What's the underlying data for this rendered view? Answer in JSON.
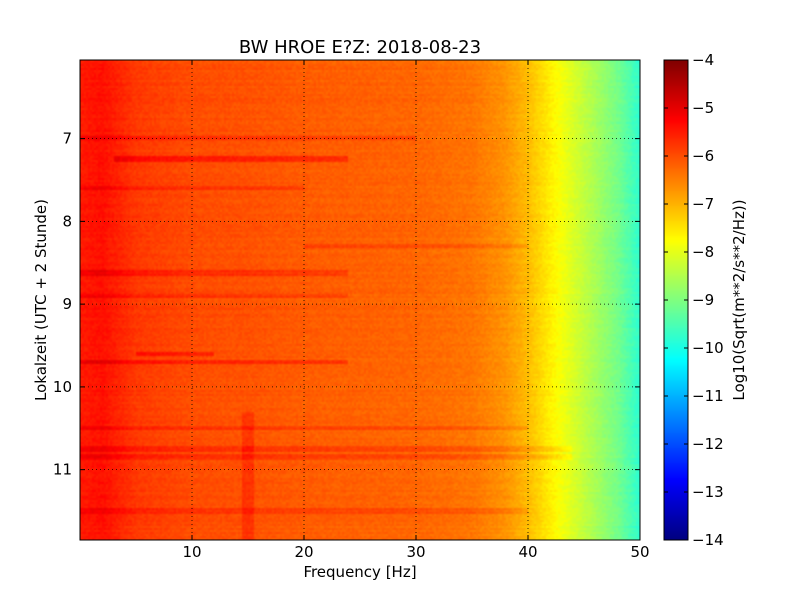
{
  "chart_data": {
    "type": "heatmap",
    "title": "BW HROE E?Z: 2018-08-23",
    "xlabel": "Frequency [Hz]",
    "ylabel": "Lokalzeit (UTC + 2 Stunde)",
    "xlim": [
      0,
      50
    ],
    "ylim": [
      6.05,
      11.85
    ],
    "y_inverted": true,
    "x_ticks": [
      10,
      20,
      30,
      40,
      50
    ],
    "x_tick_labels": [
      "10",
      "20",
      "30",
      "40",
      "50"
    ],
    "y_ticks": [
      7,
      8,
      9,
      10,
      11
    ],
    "y_tick_labels": [
      "7",
      "8",
      "9",
      "10",
      "11"
    ],
    "grid": true,
    "grid_style": "dotted",
    "colormap": "jet",
    "colorbar": {
      "label": "Log10(Sqrt(m**2/s**2/Hz))",
      "min": -14,
      "max": -4,
      "ticks": [
        -4,
        -5,
        -6,
        -7,
        -8,
        -9,
        -10,
        -11,
        -12,
        -13,
        -14
      ],
      "tick_labels": [
        "−4",
        "−5",
        "−6",
        "−7",
        "−8",
        "−9",
        "−10",
        "−11",
        "−12",
        "−13",
        "−14"
      ]
    },
    "spectrum_profile": {
      "frequency_hz": [
        0,
        2,
        5,
        10,
        15,
        20,
        25,
        30,
        35,
        38,
        40,
        42,
        44,
        46,
        48,
        50
      ],
      "log_amplitude": [
        -5.5,
        -5.4,
        -5.8,
        -6.0,
        -6.05,
        -6.15,
        -6.2,
        -6.25,
        -6.4,
        -6.7,
        -7.1,
        -7.6,
        -8.1,
        -8.6,
        -9.1,
        -9.8
      ]
    },
    "horizontal_features": [
      {
        "time": 7.0,
        "f_start": 0,
        "f_end": 30,
        "delta": 0.35
      },
      {
        "time": 7.25,
        "f_start": 3,
        "f_end": 24,
        "delta": 0.5
      },
      {
        "time": 7.6,
        "f_start": 0,
        "f_end": 20,
        "delta": 0.3
      },
      {
        "time": 8.3,
        "f_start": 20,
        "f_end": 40,
        "delta": 0.3
      },
      {
        "time": 8.62,
        "f_start": 0,
        "f_end": 24,
        "delta": 0.35
      },
      {
        "time": 8.9,
        "f_start": 0,
        "f_end": 24,
        "delta": 0.3
      },
      {
        "time": 9.6,
        "f_start": 5,
        "f_end": 12,
        "delta": 0.45
      },
      {
        "time": 9.7,
        "f_start": 0,
        "f_end": 24,
        "delta": 0.45
      },
      {
        "time": 10.5,
        "f_start": 0,
        "f_end": 40,
        "delta": 0.3
      },
      {
        "time": 10.75,
        "f_start": 0,
        "f_end": 44,
        "delta": 0.3
      },
      {
        "time": 10.85,
        "f_start": 0,
        "f_end": 44,
        "delta": 0.3
      },
      {
        "time": 11.5,
        "f_start": 0,
        "f_end": 40,
        "delta": 0.25
      }
    ],
    "vertical_features": [
      {
        "frequency_hz": 15,
        "t_start": 10.3,
        "t_end": 11.85,
        "delta": 0.3
      }
    ]
  }
}
